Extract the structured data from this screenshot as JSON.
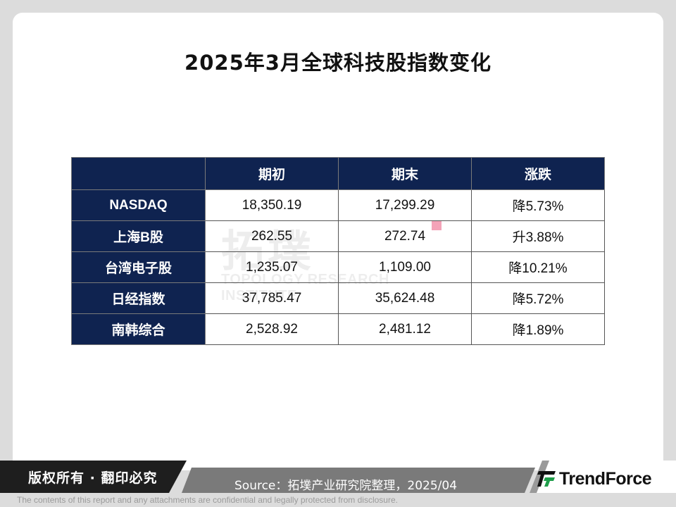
{
  "title": "2025年3月全球科技股指数变化",
  "table": {
    "headers": [
      "",
      "期初",
      "期末",
      "涨跌"
    ],
    "rows": [
      {
        "name": "NASDAQ",
        "start": "18,350.19",
        "end": "17,299.29",
        "change": "降5.73%"
      },
      {
        "name": "上海B股",
        "start": "262.55",
        "end": "272.74",
        "change": "升3.88%"
      },
      {
        "name": "台湾电子股",
        "start": "1,235.07",
        "end": "1,109.00",
        "change": "降10.21%"
      },
      {
        "name": "日经指数",
        "start": "37,785.47",
        "end": "35,624.48",
        "change": "降5.72%"
      },
      {
        "name": "南韩综合",
        "start": "2,528.92",
        "end": "2,481.12",
        "change": "降1.89%"
      }
    ]
  },
  "watermark": {
    "cn": "拓墣",
    "en": "TOPOLOGY RESEARCH INSTITUTE"
  },
  "footer": {
    "copyright": "版权所有 · 翻印必究",
    "source": "Source：拓墣产业研究院整理，2025/04",
    "logo": "TrendForce",
    "disclaimer": "The contents of this report and any attachments are confidential and legally protected from disclosure."
  },
  "colors": {
    "header_bg": "#0f2350",
    "footer_dark": "#1e1e1e",
    "logo_green": "#1f9e4a"
  }
}
